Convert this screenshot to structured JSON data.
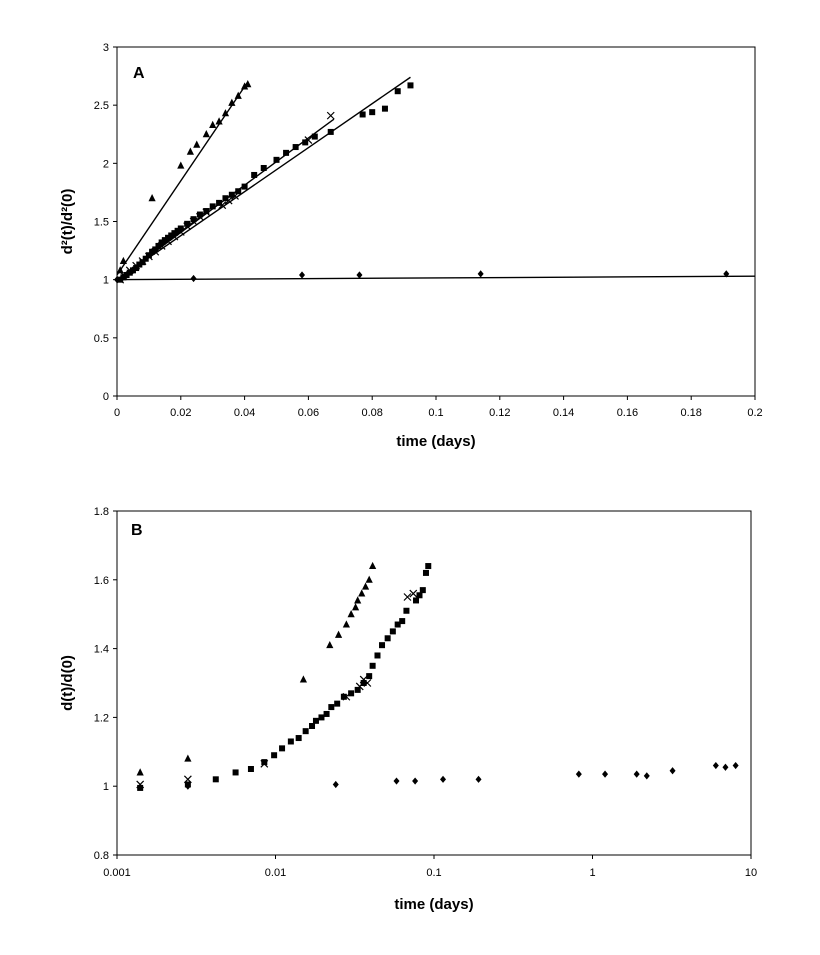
{
  "chart_data": [
    {
      "type": "scatter",
      "panel_label": "A",
      "xlabel": "time (days)",
      "ylabel_html": "d²(t)/d²(0)",
      "xlim": [
        0,
        0.2
      ],
      "ylim": [
        0,
        3
      ],
      "xticks": [
        0,
        0.02,
        0.04,
        0.06,
        0.08,
        0.1,
        0.12,
        0.14,
        0.16,
        0.18,
        0.2
      ],
      "xtick_labels": [
        "0",
        "0.02",
        "0.04",
        "0.06",
        "0.08",
        "0.1",
        "0.12",
        "0.14",
        "0.16",
        "0.18",
        "0.2"
      ],
      "yticks": [
        0,
        0.5,
        1,
        1.5,
        2,
        2.5,
        3
      ],
      "ytick_labels": [
        "0",
        "0.5",
        "1",
        "1.5",
        "2",
        "2.5",
        "3"
      ],
      "x_scale": "linear",
      "grid": false,
      "legend": "none",
      "series": [
        {
          "marker": "triangle",
          "points": [
            [
              0.001,
              1.08
            ],
            [
              0.002,
              1.16
            ],
            [
              0.011,
              1.7
            ],
            [
              0.02,
              1.98
            ],
            [
              0.023,
              2.1
            ],
            [
              0.025,
              2.16
            ],
            [
              0.028,
              2.25
            ],
            [
              0.03,
              2.33
            ],
            [
              0.032,
              2.36
            ],
            [
              0.034,
              2.43
            ],
            [
              0.036,
              2.52
            ],
            [
              0.038,
              2.58
            ],
            [
              0.04,
              2.66
            ],
            [
              0.041,
              2.68
            ]
          ]
        },
        {
          "marker": "square",
          "points": [
            [
              0.001,
              1.0
            ],
            [
              0.002,
              1.02
            ],
            [
              0.003,
              1.04
            ],
            [
              0.004,
              1.06
            ],
            [
              0.005,
              1.08
            ],
            [
              0.006,
              1.1
            ],
            [
              0.007,
              1.13
            ],
            [
              0.008,
              1.15
            ],
            [
              0.009,
              1.18
            ],
            [
              0.01,
              1.21
            ],
            [
              0.011,
              1.24
            ],
            [
              0.012,
              1.26
            ],
            [
              0.013,
              1.29
            ],
            [
              0.014,
              1.32
            ],
            [
              0.015,
              1.34
            ],
            [
              0.016,
              1.36
            ],
            [
              0.017,
              1.38
            ],
            [
              0.018,
              1.4
            ],
            [
              0.019,
              1.42
            ],
            [
              0.02,
              1.44
            ],
            [
              0.022,
              1.48
            ],
            [
              0.024,
              1.52
            ],
            [
              0.026,
              1.56
            ],
            [
              0.028,
              1.59
            ],
            [
              0.03,
              1.63
            ],
            [
              0.032,
              1.66
            ],
            [
              0.034,
              1.7
            ],
            [
              0.036,
              1.73
            ],
            [
              0.038,
              1.76
            ],
            [
              0.04,
              1.8
            ],
            [
              0.043,
              1.9
            ],
            [
              0.046,
              1.96
            ],
            [
              0.05,
              2.03
            ],
            [
              0.053,
              2.09
            ],
            [
              0.056,
              2.14
            ],
            [
              0.059,
              2.18
            ],
            [
              0.062,
              2.23
            ],
            [
              0.067,
              2.27
            ],
            [
              0.077,
              2.42
            ],
            [
              0.08,
              2.44
            ],
            [
              0.084,
              2.47
            ],
            [
              0.088,
              2.62
            ],
            [
              0.092,
              2.67
            ]
          ]
        },
        {
          "marker": "x",
          "points": [
            [
              0.001,
              1.0
            ],
            [
              0.002,
              1.04
            ],
            [
              0.004,
              1.08
            ],
            [
              0.006,
              1.12
            ],
            [
              0.008,
              1.16
            ],
            [
              0.01,
              1.2
            ],
            [
              0.012,
              1.24
            ],
            [
              0.014,
              1.29
            ],
            [
              0.016,
              1.33
            ],
            [
              0.018,
              1.37
            ],
            [
              0.02,
              1.41
            ],
            [
              0.022,
              1.46
            ],
            [
              0.024,
              1.5
            ],
            [
              0.026,
              1.54
            ],
            [
              0.028,
              1.58
            ],
            [
              0.033,
              1.64
            ],
            [
              0.035,
              1.68
            ],
            [
              0.037,
              1.72
            ],
            [
              0.06,
              2.2
            ],
            [
              0.067,
              2.41
            ]
          ]
        },
        {
          "marker": "diamond",
          "points": [
            [
              0.0,
              1.0
            ],
            [
              0.024,
              1.01
            ],
            [
              0.058,
              1.04
            ],
            [
              0.076,
              1.04
            ],
            [
              0.114,
              1.05
            ],
            [
              0.191,
              1.05
            ]
          ]
        }
      ],
      "fit_lines": [
        {
          "x": [
            0.0,
            0.041
          ],
          "y": [
            1.04,
            2.7
          ]
        },
        {
          "x": [
            0.0,
            0.068
          ],
          "y": [
            1.0,
            2.38
          ]
        },
        {
          "x": [
            0.0,
            0.092
          ],
          "y": [
            1.0,
            2.74
          ]
        },
        {
          "x": [
            0.0,
            0.2
          ],
          "y": [
            1.0,
            1.03
          ]
        }
      ]
    },
    {
      "type": "scatter",
      "panel_label": "B",
      "xlabel": "time (days)",
      "ylabel_html": "d(t)/d(0)",
      "xlim": [
        0.001,
        10
      ],
      "ylim": [
        0.8,
        1.8
      ],
      "x_scale": "log",
      "xticks": [
        0.001,
        0.01,
        0.1,
        1,
        10
      ],
      "xtick_labels": [
        "0.001",
        "0.01",
        "0.1",
        "1",
        "10"
      ],
      "yticks": [
        0.8,
        1,
        1.2,
        1.4,
        1.6,
        1.8
      ],
      "ytick_labels": [
        "0.8",
        "1",
        "1.2",
        "1.4",
        "1.6",
        "1.8"
      ],
      "grid": false,
      "legend": "none",
      "series": [
        {
          "marker": "triangle",
          "points": [
            [
              0.0014,
              1.04
            ],
            [
              0.0028,
              1.08
            ],
            [
              0.015,
              1.31
            ],
            [
              0.022,
              1.41
            ],
            [
              0.025,
              1.44
            ],
            [
              0.028,
              1.47
            ],
            [
              0.03,
              1.5
            ],
            [
              0.032,
              1.52
            ],
            [
              0.033,
              1.54
            ],
            [
              0.035,
              1.56
            ],
            [
              0.037,
              1.58
            ],
            [
              0.039,
              1.6
            ],
            [
              0.041,
              1.64
            ]
          ]
        },
        {
          "marker": "square",
          "points": [
            [
              0.0014,
              0.995
            ],
            [
              0.0028,
              1.005
            ],
            [
              0.0042,
              1.02
            ],
            [
              0.0056,
              1.04
            ],
            [
              0.007,
              1.05
            ],
            [
              0.0085,
              1.07
            ],
            [
              0.0098,
              1.09
            ],
            [
              0.011,
              1.11
            ],
            [
              0.0125,
              1.13
            ],
            [
              0.014,
              1.14
            ],
            [
              0.0155,
              1.16
            ],
            [
              0.017,
              1.175
            ],
            [
              0.018,
              1.19
            ],
            [
              0.0195,
              1.2
            ],
            [
              0.021,
              1.21
            ],
            [
              0.0225,
              1.23
            ],
            [
              0.0245,
              1.24
            ],
            [
              0.027,
              1.26
            ],
            [
              0.03,
              1.27
            ],
            [
              0.033,
              1.28
            ],
            [
              0.036,
              1.3
            ],
            [
              0.039,
              1.32
            ],
            [
              0.041,
              1.35
            ],
            [
              0.044,
              1.38
            ],
            [
              0.047,
              1.41
            ],
            [
              0.051,
              1.43
            ],
            [
              0.055,
              1.45
            ],
            [
              0.059,
              1.47
            ],
            [
              0.063,
              1.48
            ],
            [
              0.067,
              1.51
            ],
            [
              0.077,
              1.54
            ],
            [
              0.081,
              1.555
            ],
            [
              0.085,
              1.57
            ],
            [
              0.089,
              1.62
            ],
            [
              0.092,
              1.64
            ]
          ]
        },
        {
          "marker": "x",
          "points": [
            [
              0.0014,
              1.005
            ],
            [
              0.0028,
              1.02
            ],
            [
              0.0085,
              1.065
            ],
            [
              0.028,
              1.26
            ],
            [
              0.034,
              1.29
            ],
            [
              0.036,
              1.31
            ],
            [
              0.038,
              1.3
            ],
            [
              0.068,
              1.55
            ],
            [
              0.074,
              1.56
            ]
          ]
        },
        {
          "marker": "diamond",
          "points": [
            [
              0.0028,
              1.0
            ],
            [
              0.024,
              1.005
            ],
            [
              0.058,
              1.015
            ],
            [
              0.076,
              1.015
            ],
            [
              0.114,
              1.02
            ],
            [
              0.191,
              1.02
            ],
            [
              0.82,
              1.035
            ],
            [
              1.2,
              1.035
            ],
            [
              1.9,
              1.035
            ],
            [
              2.2,
              1.03
            ],
            [
              3.2,
              1.045
            ],
            [
              6.0,
              1.06
            ],
            [
              6.9,
              1.055
            ],
            [
              8.0,
              1.06
            ]
          ]
        }
      ]
    }
  ]
}
